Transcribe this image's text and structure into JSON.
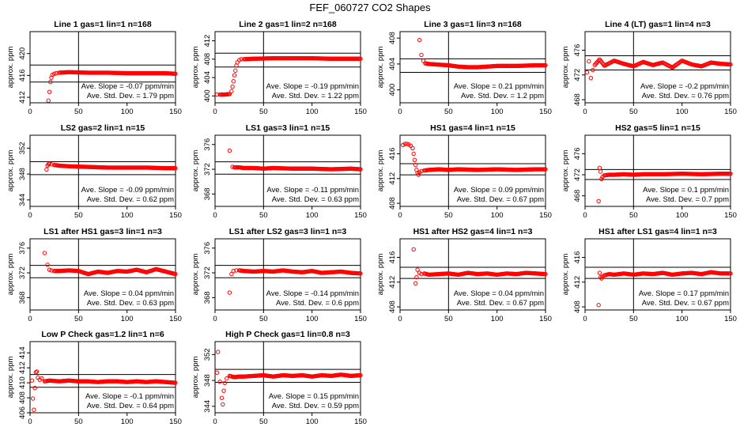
{
  "title": "FEF_060727  CO2 Shapes",
  "chart_data": [
    {
      "type": "scatter",
      "title": "Line 1 gas=1 lin=1 n=168",
      "ylabel": "approx. ppm",
      "xlim": [
        0,
        150
      ],
      "ylim": [
        411,
        424
      ],
      "yticks": [
        412,
        416,
        420
      ],
      "xticks": [
        0,
        50,
        100,
        150
      ],
      "hlines": [
        414.8,
        417.9
      ],
      "vline": 50,
      "slope": "Ave. Slope = -0.07 ppm/min",
      "std": "Ave. Std. Dev. = 1.79 ppm",
      "series": [
        {
          "name": "data",
          "x": [
            19,
            20,
            21,
            22,
            23,
            25,
            27,
            30,
            40,
            60,
            80,
            100,
            120,
            140,
            150
          ],
          "y": [
            411.4,
            413.0,
            414.8,
            415.6,
            416.1,
            416.3,
            416.4,
            416.5,
            416.6,
            416.5,
            416.5,
            416.4,
            416.4,
            416.4,
            416.3
          ]
        }
      ]
    },
    {
      "type": "scatter",
      "title": "Line 2 gas=1 lin=2 n=168",
      "ylabel": "approx. ppm",
      "xlim": [
        0,
        150
      ],
      "ylim": [
        398.5,
        414
      ],
      "yticks": [
        400,
        404,
        408,
        412
      ],
      "xticks": [
        0,
        50,
        100,
        150
      ],
      "hlines": [
        406.3,
        409.3
      ],
      "vline": 50,
      "slope": "Ave. Slope = -0.19 ppm/min",
      "std": "Ave. Std. Dev. = 1.22 ppm",
      "series": [
        {
          "name": "data",
          "x": [
            2,
            5,
            10,
            15,
            17,
            18,
            19,
            20,
            21,
            22,
            23,
            25,
            27,
            30,
            40,
            60,
            80,
            100,
            120,
            140,
            150
          ],
          "y": [
            400.3,
            400.3,
            400.3,
            400.4,
            401.0,
            402.0,
            403.2,
            404.5,
            405.5,
            406.6,
            407.3,
            407.8,
            408.0,
            408.0,
            408.1,
            408.2,
            408.2,
            408.2,
            408.1,
            408.1,
            408.1
          ]
        }
      ]
    },
    {
      "type": "scatter",
      "title": "Line 3 gas=1 lin=3 n=168",
      "ylabel": "approx. ppm",
      "xlim": [
        0,
        150
      ],
      "ylim": [
        398,
        409
      ],
      "yticks": [
        400,
        404,
        408
      ],
      "xticks": [
        0,
        50,
        100,
        150
      ],
      "hlines": [
        402.7,
        404.8
      ],
      "vline": 50,
      "slope": "Ave. Slope = 0.21 ppm/min",
      "std": "Ave. Std. Dev. = 1.2 ppm",
      "series": [
        {
          "name": "data",
          "x": [
            20,
            22,
            24,
            26,
            30,
            40,
            50,
            60,
            70,
            80,
            90,
            100,
            120,
            140,
            150
          ],
          "y": [
            407.7,
            405.4,
            404.5,
            404.1,
            404.0,
            403.9,
            403.8,
            403.6,
            403.5,
            403.5,
            403.6,
            403.7,
            403.7,
            403.8,
            403.8
          ]
        }
      ]
    },
    {
      "type": "scatter",
      "title": "Line 4 (LT) gas=1 lin=4 n=3",
      "ylabel": "approx. ppm",
      "xlim": [
        0,
        150
      ],
      "ylim": [
        467.5,
        479
      ],
      "yticks": [
        468,
        472,
        476
      ],
      "xticks": [
        0,
        50,
        100,
        150
      ],
      "hlines": [
        472.8,
        475.1
      ],
      "vline": 50,
      "slope": "Ave. Slope = -0.2 ppm/min",
      "std": "Ave. Std. Dev. = 0.76 ppm",
      "series": [
        {
          "name": "data",
          "x": [
            2,
            4,
            6,
            8,
            10,
            15,
            20,
            30,
            40,
            50,
            60,
            70,
            80,
            90,
            100,
            110,
            120,
            130,
            140,
            150
          ],
          "y": [
            472.4,
            474.2,
            471.5,
            472.8,
            473.6,
            474.5,
            473.5,
            474.3,
            473.8,
            473.4,
            474.1,
            473.6,
            474.0,
            473.2,
            474.3,
            473.7,
            473.4,
            474.0,
            473.8,
            473.7
          ]
        }
      ]
    },
    {
      "type": "scatter",
      "title": "LS2 gas=2 lin=1 n=15",
      "ylabel": "approx. ppm",
      "xlim": [
        0,
        150
      ],
      "ylim": [
        343,
        354
      ],
      "yticks": [
        344,
        348,
        352
      ],
      "xticks": [
        0,
        50,
        100,
        150
      ],
      "hlines": [
        347.9,
        349.9
      ],
      "vline": 50,
      "slope": "Ave. Slope = -0.09 ppm/min",
      "std": "Ave. Std. Dev. = 0.62 ppm",
      "series": [
        {
          "name": "data",
          "x": [
            17,
            18,
            19,
            20,
            22,
            25,
            30,
            40,
            60,
            80,
            100,
            120,
            140,
            150
          ],
          "y": [
            348.7,
            349.3,
            349.5,
            349.6,
            349.5,
            349.4,
            349.3,
            349.2,
            349.1,
            349.0,
            349.0,
            349.0,
            348.9,
            348.9
          ]
        }
      ]
    },
    {
      "type": "scatter",
      "title": "LS1 gas=3 lin=1 n=15",
      "ylabel": "approx. ppm",
      "xlim": [
        0,
        150
      ],
      "ylim": [
        366,
        377.5
      ],
      "yticks": [
        368,
        372,
        376
      ],
      "xticks": [
        0,
        50,
        100,
        150
      ],
      "hlines": [
        371.2,
        373.2
      ],
      "vline": 50,
      "slope": "Ave. Slope = -0.11 ppm/min",
      "std": "Ave. Std. Dev. = 0.63 ppm",
      "series": [
        {
          "name": "data",
          "x": [
            15,
            18,
            20,
            25,
            30,
            40,
            50,
            60,
            80,
            100,
            120,
            140,
            150
          ],
          "y": [
            375.0,
            372.4,
            372.3,
            372.3,
            372.2,
            372.2,
            372.1,
            372.2,
            372.1,
            372.1,
            372.0,
            372.1,
            372.0
          ]
        }
      ]
    },
    {
      "type": "scatter",
      "title": "HS1 gas=4 lin=1 n=15",
      "ylabel": "approx. ppm",
      "xlim": [
        0,
        150
      ],
      "ylim": [
        407.5,
        419
      ],
      "yticks": [
        408,
        412,
        416
      ],
      "xticks": [
        0,
        50,
        100,
        150
      ],
      "hlines": [
        412.6,
        414.4
      ],
      "vline": 50,
      "slope": "Ave. Slope = 0.09 ppm/min",
      "std": "Ave. Std. Dev. = 0.67 ppm",
      "series": [
        {
          "name": "data",
          "x": [
            3,
            5,
            7,
            9,
            11,
            13,
            14,
            15,
            16,
            17,
            18,
            19,
            20,
            22,
            25,
            30,
            40,
            50,
            60,
            80,
            100,
            120,
            140,
            150
          ],
          "y": [
            417.4,
            417.6,
            417.6,
            417.5,
            417.3,
            416.9,
            416.0,
            415.0,
            414.2,
            413.4,
            412.9,
            412.6,
            413.0,
            413.2,
            413.3,
            413.4,
            413.5,
            413.4,
            413.5,
            413.4,
            413.5,
            413.4,
            413.5,
            413.5
          ]
        }
      ]
    },
    {
      "type": "scatter",
      "title": "HS2 gas=5 lin=1 n=15",
      "ylabel": "approx. ppm",
      "xlim": [
        0,
        150
      ],
      "ylim": [
        466,
        479.5
      ],
      "yticks": [
        468,
        472,
        476
      ],
      "xticks": [
        0,
        50,
        100,
        150
      ],
      "hlines": [
        471.1,
        473.0
      ],
      "vline": 50,
      "slope": "Ave. Slope = 0.1 ppm/min",
      "std": "Ave. Std. Dev. = 0.7 ppm",
      "series": [
        {
          "name": "data",
          "x": [
            14,
            15,
            16,
            17,
            18,
            20,
            25,
            30,
            40,
            50,
            60,
            80,
            100,
            120,
            140,
            150
          ],
          "y": [
            467.0,
            473.3,
            472.6,
            471.2,
            471.6,
            471.9,
            472.0,
            472.0,
            472.1,
            472.0,
            472.1,
            472.1,
            472.2,
            472.1,
            472.2,
            472.2
          ]
        }
      ]
    },
    {
      "type": "scatter",
      "title": "LS1 after HS1 gas=3 lin=1 n=3",
      "ylabel": "approx. ppm",
      "xlim": [
        0,
        150
      ],
      "ylim": [
        366,
        377.5
      ],
      "yticks": [
        368,
        372,
        376
      ],
      "xticks": [
        0,
        50,
        100,
        150
      ],
      "hlines": [
        371.2,
        373.2
      ],
      "vline": 50,
      "slope": "Ave. Slope = 0.04 ppm/min",
      "std": "Ave. Std. Dev. = 0.63 ppm",
      "series": [
        {
          "name": "data",
          "x": [
            15,
            18,
            20,
            22,
            25,
            30,
            40,
            50,
            60,
            70,
            80,
            90,
            100,
            110,
            120,
            130,
            140,
            150
          ],
          "y": [
            375.2,
            373.3,
            372.5,
            372.4,
            372.3,
            372.3,
            372.4,
            372.3,
            371.8,
            372.2,
            372.0,
            372.3,
            372.2,
            372.5,
            372.1,
            372.6,
            372.2,
            371.8
          ]
        }
      ]
    },
    {
      "type": "scatter",
      "title": "LS1 after LS2 gas=3 lin=1 n=3",
      "ylabel": "approx. ppm",
      "xlim": [
        0,
        150
      ],
      "ylim": [
        366,
        377.5
      ],
      "yticks": [
        368,
        372,
        376
      ],
      "xticks": [
        0,
        50,
        100,
        150
      ],
      "hlines": [
        371.2,
        373.2
      ],
      "vline": 50,
      "slope": "Ave. Slope = -0.14 ppm/min",
      "std": "Ave. Std. Dev. = 0.6 ppm",
      "series": [
        {
          "name": "data",
          "x": [
            15,
            17,
            19,
            22,
            25,
            30,
            40,
            50,
            60,
            70,
            80,
            90,
            100,
            110,
            120,
            130,
            140,
            150
          ],
          "y": [
            368.8,
            371.8,
            372.3,
            372.4,
            372.4,
            372.3,
            372.2,
            372.3,
            372.2,
            372.4,
            372.2,
            372.1,
            372.3,
            372.0,
            372.1,
            372.2,
            372.0,
            371.9
          ]
        }
      ]
    },
    {
      "type": "scatter",
      "title": "HS1 after HS2 gas=4 lin=1 n=3",
      "ylabel": "approx. ppm",
      "xlim": [
        0,
        150
      ],
      "ylim": [
        407.5,
        419
      ],
      "yticks": [
        408,
        412,
        416
      ],
      "xticks": [
        0,
        50,
        100,
        150
      ],
      "hlines": [
        412.6,
        414.4
      ],
      "vline": 50,
      "slope": "Ave. Slope = 0.04 ppm/min",
      "std": "Ave. Std. Dev. = 0.67 ppm",
      "series": [
        {
          "name": "data",
          "x": [
            14,
            16,
            17,
            18,
            20,
            22,
            25,
            30,
            40,
            50,
            60,
            70,
            80,
            90,
            100,
            110,
            120,
            130,
            140,
            150
          ],
          "y": [
            417.3,
            411.8,
            412.8,
            414.0,
            413.5,
            413.3,
            413.4,
            413.2,
            413.3,
            413.4,
            413.2,
            413.5,
            413.3,
            413.4,
            413.2,
            413.4,
            413.3,
            413.5,
            413.4,
            413.3
          ]
        }
      ]
    },
    {
      "type": "scatter",
      "title": "HS1 after LS1 gas=4 lin=1 n=3",
      "ylabel": "approx. ppm",
      "xlim": [
        0,
        150
      ],
      "ylim": [
        407.5,
        419
      ],
      "yticks": [
        408,
        412,
        416
      ],
      "xticks": [
        0,
        50,
        100,
        150
      ],
      "hlines": [
        412.6,
        414.4
      ],
      "vline": 50,
      "slope": "Ave. Slope = 0.17 ppm/min",
      "std": "Ave. Std. Dev. = 0.67 ppm",
      "series": [
        {
          "name": "data",
          "x": [
            14,
            15,
            16,
            17,
            18,
            20,
            25,
            30,
            40,
            50,
            60,
            70,
            80,
            90,
            100,
            110,
            120,
            130,
            140,
            150
          ],
          "y": [
            408.3,
            413.5,
            412.8,
            412.6,
            412.9,
            413.1,
            413.3,
            413.2,
            413.4,
            413.2,
            413.4,
            413.3,
            413.5,
            413.2,
            413.4,
            413.5,
            413.3,
            413.6,
            413.4,
            413.4
          ]
        }
      ]
    },
    {
      "type": "scatter",
      "title": "Low P Check gas=1.2 lin=1 n=6",
      "ylabel": "approx. ppm",
      "xlim": [
        0,
        150
      ],
      "ylim": [
        406,
        415.5
      ],
      "yticks": [
        406,
        408,
        410,
        412,
        414
      ],
      "xticks": [
        0,
        50,
        100,
        150
      ],
      "hlines": [
        409.4,
        411.1
      ],
      "vline": 50,
      "slope": "Ave. Slope = -0.1 ppm/min",
      "std": "Ave. Std. Dev. = 0.64 ppm",
      "series": [
        {
          "name": "data",
          "x": [
            2,
            3,
            4,
            5,
            6,
            7,
            8,
            10,
            12,
            15,
            20,
            30,
            40,
            50,
            60,
            70,
            80,
            90,
            100,
            110,
            120,
            130,
            140,
            150
          ],
          "y": [
            410.3,
            407.9,
            406.4,
            409.3,
            411.4,
            411.5,
            410.7,
            410.4,
            410.6,
            410.2,
            410.3,
            410.2,
            410.3,
            410.2,
            410.2,
            410.1,
            410.2,
            410.2,
            410.1,
            410.2,
            410.1,
            410.2,
            410.1,
            410.0
          ]
        }
      ]
    },
    {
      "type": "scatter",
      "title": "High P Check gas=1 lin=0.8 n=3",
      "ylabel": "approx. ppm",
      "xlim": [
        0,
        150
      ],
      "ylim": [
        343,
        354
      ],
      "yticks": [
        344,
        348,
        352
      ],
      "xticks": [
        0,
        50,
        100,
        150
      ],
      "hlines": [
        347.7,
        349.7
      ],
      "vline": 50,
      "slope": "Ave. Slope = 0.15 ppm/min",
      "std": "Ave. Std. Dev. = 0.59 ppm",
      "series": [
        {
          "name": "data",
          "x": [
            2,
            3,
            5,
            7,
            8,
            9,
            10,
            12,
            15,
            20,
            25,
            30,
            40,
            50,
            60,
            70,
            80,
            90,
            100,
            110,
            120,
            130,
            140,
            150
          ],
          "y": [
            349.2,
            352.4,
            347.8,
            345.3,
            344.3,
            346.4,
            347.6,
            348.3,
            348.7,
            348.5,
            348.6,
            348.6,
            348.7,
            348.8,
            348.6,
            348.8,
            348.7,
            348.8,
            348.6,
            348.8,
            348.7,
            348.9,
            348.7,
            348.8
          ]
        }
      ]
    }
  ]
}
